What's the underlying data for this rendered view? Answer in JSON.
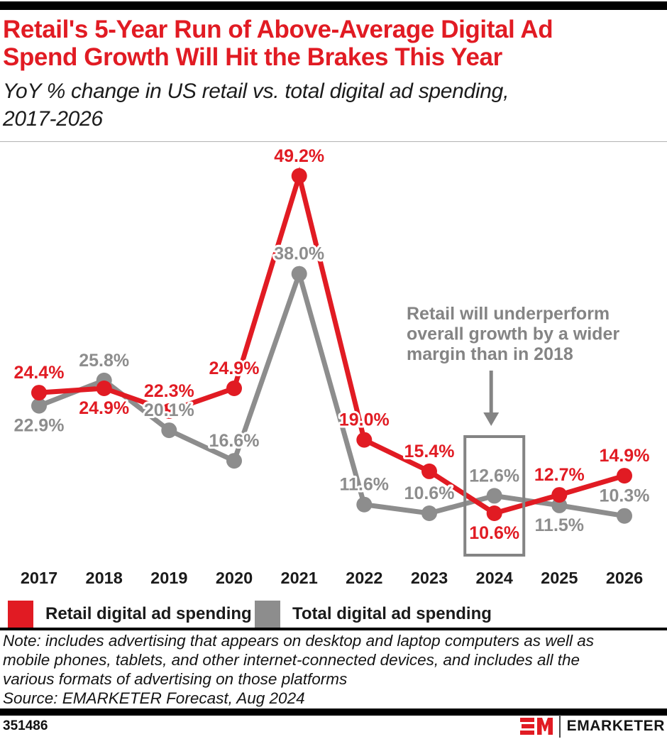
{
  "header": {
    "title_lines": [
      "Retail's 5-Year Run of Above-Average Digital Ad",
      "Spend Growth Will Hit the Brakes This Year"
    ],
    "subtitle_lines": [
      "YoY % change in US retail vs. total digital ad spending,",
      "2017-2026"
    ]
  },
  "chart_data": {
    "type": "line",
    "title": "Retail's 5-Year Run of Above-Average Digital Ad Spend Growth Will Hit the Brakes This Year",
    "subtitle": "YoY % change in US retail vs. total digital ad spending, 2017-2026",
    "categories": [
      "2017",
      "2018",
      "2019",
      "2020",
      "2021",
      "2022",
      "2023",
      "2024",
      "2025",
      "2026"
    ],
    "value_suffix": "%",
    "ylim": [
      8,
      52
    ],
    "grid": false,
    "legend_position": "bottom",
    "series": [
      {
        "name": "Retail digital ad spending",
        "color": "#e11b23",
        "values": [
          24.4,
          24.9,
          22.3,
          24.9,
          49.2,
          19.0,
          15.4,
          10.6,
          12.7,
          14.9
        ],
        "label_pos": [
          "above",
          "below",
          "above",
          "above",
          "above",
          "above",
          "above",
          "below",
          "above",
          "above"
        ]
      },
      {
        "name": "Total digital ad spending",
        "color": "#8d8d8d",
        "values": [
          22.9,
          25.8,
          20.1,
          16.6,
          38.0,
          11.6,
          10.6,
          12.6,
          11.5,
          10.3
        ],
        "label_pos": [
          "below",
          "above",
          "above",
          "above",
          "above",
          "above",
          "above",
          "above",
          "below",
          "above"
        ]
      }
    ],
    "annotation": {
      "lines": [
        "Retail will underperform",
        "overall growth by a wider",
        "margin than in 2018"
      ],
      "box_category": "2024",
      "color": "#848484"
    }
  },
  "note": {
    "lines": [
      "Note: includes advertising that appears on desktop and laptop computers as well as",
      "mobile phones, tablets, and other internet-connected devices, and includes all the",
      "various formats of advertising on those platforms",
      "Source: EMARKETER Forecast, Aug 2024"
    ]
  },
  "footer": {
    "chart_id": "351486",
    "brand": "EMARKETER"
  }
}
